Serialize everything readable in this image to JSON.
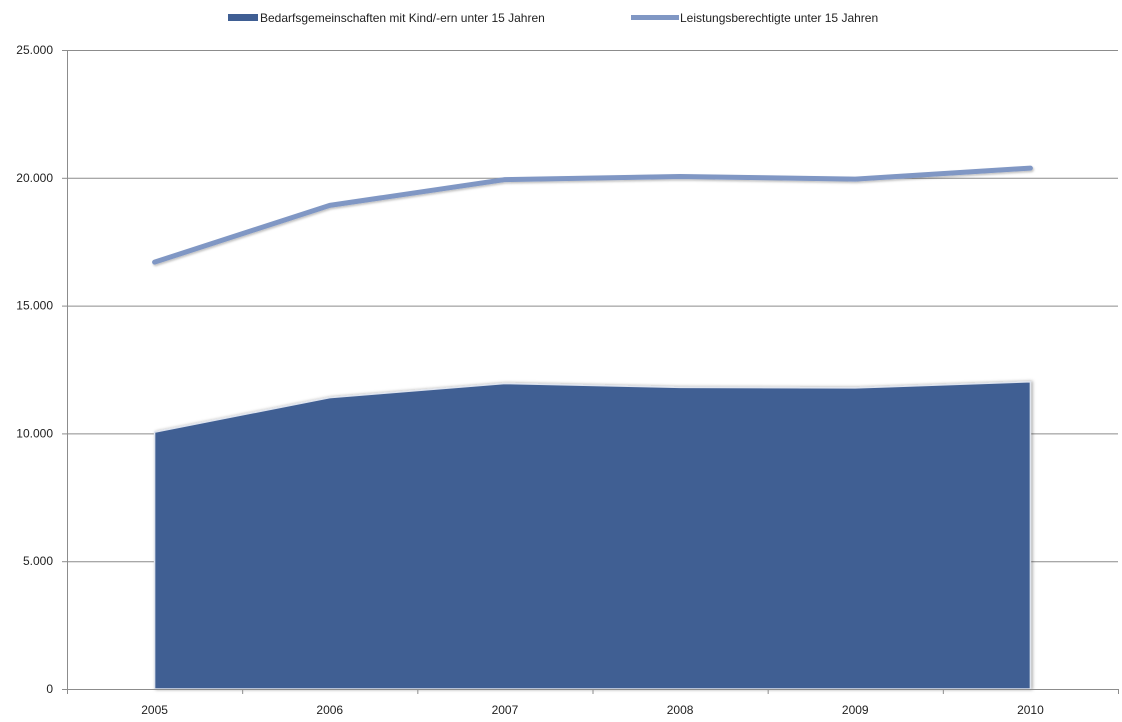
{
  "chart_data": {
    "type": "area",
    "title": "",
    "xlabel": "",
    "ylabel": "",
    "categories": [
      "2005",
      "2006",
      "2007",
      "2008",
      "2009",
      "2010"
    ],
    "ylim": [
      0,
      25000
    ],
    "yticks": [
      0,
      5000,
      10000,
      15000,
      20000,
      25000
    ],
    "ytick_labels": [
      "0",
      "5.000",
      "10.000",
      "15.000",
      "20.000",
      "25.000"
    ],
    "grid": true,
    "legend_position": "top",
    "series": [
      {
        "name": "Bedarfsgemeinschaften mit Kind/-ern unter 15 Jahren",
        "render": "area",
        "color": "#3f5e93",
        "values": [
          10050,
          11400,
          11950,
          11800,
          11780,
          12020
        ]
      },
      {
        "name": "Leistungsberechtigte unter 15 Jahren",
        "render": "line",
        "color": "#8097c4",
        "values": [
          16700,
          18920,
          19930,
          20050,
          19950,
          20380
        ]
      }
    ]
  }
}
